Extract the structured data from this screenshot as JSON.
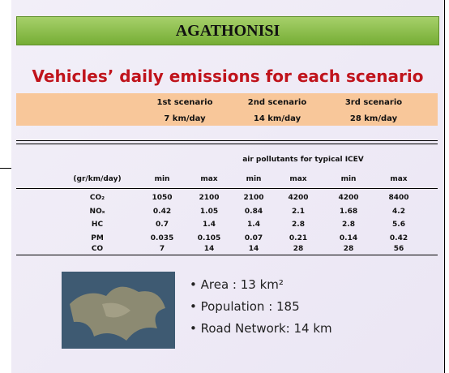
{
  "header": {
    "title": "AGATHONISI"
  },
  "subtitle": "Vehicles’ daily emissions for each scenario",
  "scenarios": [
    {
      "name": "1st scenario",
      "distance": "7 km/day"
    },
    {
      "name": "2nd scenario",
      "distance": "14 km/day"
    },
    {
      "name": "3rd scenario",
      "distance": "28 km/day"
    }
  ],
  "table": {
    "caption": "air pollutants for typical ICEV",
    "columns": [
      "(gr/km/day)",
      "min",
      "max",
      "min",
      "max",
      "min",
      "max"
    ],
    "rows": [
      [
        "CO₂",
        1050,
        2100,
        2100,
        4200,
        4200,
        8400
      ],
      [
        "NOₓ",
        0.42,
        1.05,
        0.84,
        2.1,
        1.68,
        4.2
      ],
      [
        "HC",
        0.7,
        1.4,
        1.4,
        2.8,
        2.8,
        5.6
      ],
      [
        "PM",
        0.035,
        0.105,
        0.07,
        0.21,
        0.14,
        0.42
      ],
      [
        "CO",
        7,
        14,
        14,
        28,
        28,
        56
      ]
    ]
  },
  "facts": [
    "Area : 13 km²",
    "Population : 185",
    "Road Network: 14 km"
  ]
}
